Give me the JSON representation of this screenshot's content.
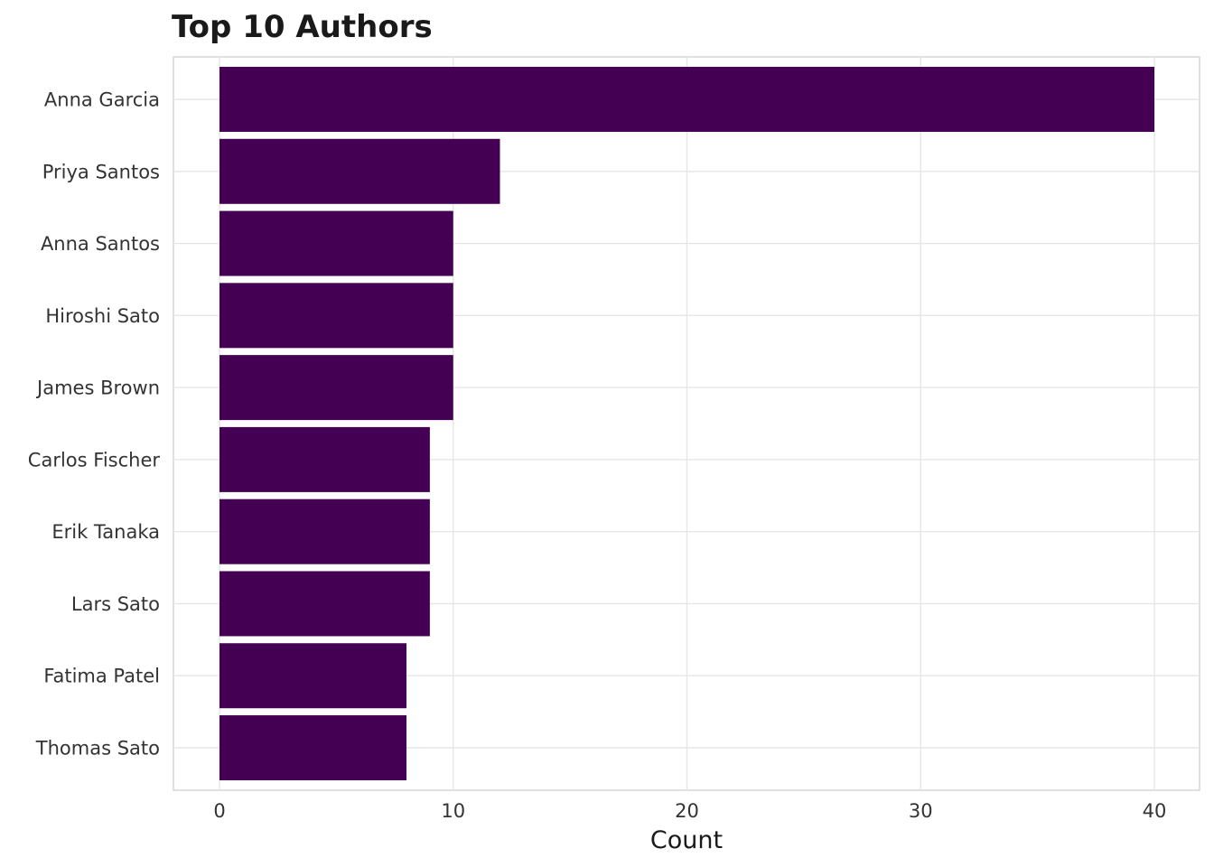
{
  "chart_data": {
    "type": "bar",
    "orientation": "horizontal",
    "title": "Top 10 Authors",
    "xlabel": "Count",
    "ylabel": "",
    "categories": [
      "Anna Garcia",
      "Priya Santos",
      "Anna Santos",
      "Hiroshi Sato",
      "James Brown",
      "Carlos Fischer",
      "Erik Tanaka",
      "Lars Sato",
      "Fatima Patel",
      "Thomas Sato"
    ],
    "values": [
      40,
      12,
      10,
      10,
      10,
      9,
      9,
      9,
      8,
      8
    ],
    "xlim": [
      0,
      40
    ],
    "xticks": [
      0,
      10,
      20,
      30,
      40
    ],
    "grid": true,
    "legend": "none",
    "bar_color": "#440154",
    "grid_color": "#e6e6e6",
    "panel_border_color": "#cccccc"
  }
}
